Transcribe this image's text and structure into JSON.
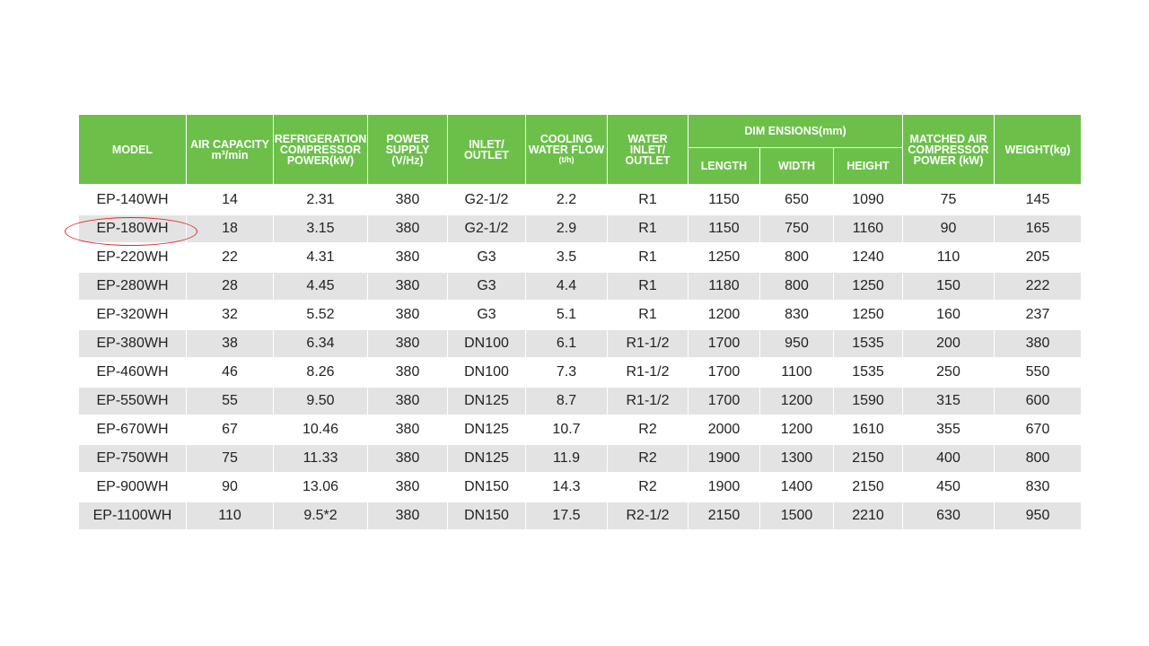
{
  "colors": {
    "header_background": "#6cc04a",
    "header_text": "#ffffff",
    "stripe": "#e3e3e3",
    "highlight": "#e0272b"
  },
  "headers": {
    "model": "MODEL",
    "air_capacity": {
      "line1": "AIR CAPACITY",
      "line2": "m³/min"
    },
    "refrigeration_power": {
      "line1": "REFRIGERATION",
      "line2": "COMPRESSOR",
      "line3": "POWER(kW)"
    },
    "power_supply": {
      "line1": "POWER",
      "line2": "SUPPLY",
      "line3": "(V/Hz)"
    },
    "inlet_outlet": {
      "line1": "INLET/",
      "line2": "OUTLET"
    },
    "cooling_water_flow": {
      "line1": "COOLING",
      "line2": "WATER FLOW",
      "line3": "(t/h)"
    },
    "water_inlet_outlet": {
      "line1": "WATER",
      "line2": "INLET/",
      "line3": "OUTLET"
    },
    "dimensions": "DIM ENSIONS(mm)",
    "length": "LENGTH",
    "width": "WIDTH",
    "height": "HEIGHT",
    "matched_air": {
      "line1": "MATCHED AIR",
      "line2": "COMPRESSOR",
      "line3": "POWER (kW)"
    },
    "weight": "WEIGHT(kg)"
  },
  "highlighted_model": "EP-180WH",
  "rows": [
    [
      "EP-140WH",
      "14",
      "2.31",
      "380",
      "G2-1/2",
      "2.2",
      "R1",
      "1150",
      "650",
      "1090",
      "75",
      "145"
    ],
    [
      "EP-180WH",
      "18",
      "3.15",
      "380",
      "G2-1/2",
      "2.9",
      "R1",
      "1150",
      "750",
      "1160",
      "90",
      "165"
    ],
    [
      "EP-220WH",
      "22",
      "4.31",
      "380",
      "G3",
      "3.5",
      "R1",
      "1250",
      "800",
      "1240",
      "110",
      "205"
    ],
    [
      "EP-280WH",
      "28",
      "4.45",
      "380",
      "G3",
      "4.4",
      "R1",
      "1180",
      "800",
      "1250",
      "150",
      "222"
    ],
    [
      "EP-320WH",
      "32",
      "5.52",
      "380",
      "G3",
      "5.1",
      "R1",
      "1200",
      "830",
      "1250",
      "160",
      "237"
    ],
    [
      "EP-380WH",
      "38",
      "6.34",
      "380",
      "DN100",
      "6.1",
      "R1-1/2",
      "1700",
      "950",
      "1535",
      "200",
      "380"
    ],
    [
      "EP-460WH",
      "46",
      "8.26",
      "380",
      "DN100",
      "7.3",
      "R1-1/2",
      "1700",
      "1100",
      "1535",
      "250",
      "550"
    ],
    [
      "EP-550WH",
      "55",
      "9.50",
      "380",
      "DN125",
      "8.7",
      "R1-1/2",
      "1700",
      "1200",
      "1590",
      "315",
      "600"
    ],
    [
      "EP-670WH",
      "67",
      "10.46",
      "380",
      "DN125",
      "10.7",
      "R2",
      "2000",
      "1200",
      "1610",
      "355",
      "670"
    ],
    [
      "EP-750WH",
      "75",
      "11.33",
      "380",
      "DN125",
      "11.9",
      "R2",
      "1900",
      "1300",
      "2150",
      "400",
      "800"
    ],
    [
      "EP-900WH",
      "90",
      "13.06",
      "380",
      "DN150",
      "14.3",
      "R2",
      "1900",
      "1400",
      "2150",
      "450",
      "830"
    ],
    [
      "EP-1100WH",
      "110",
      "9.5*2",
      "380",
      "DN150",
      "17.5",
      "R2-1/2",
      "2150",
      "1500",
      "2210",
      "630",
      "950"
    ]
  ]
}
